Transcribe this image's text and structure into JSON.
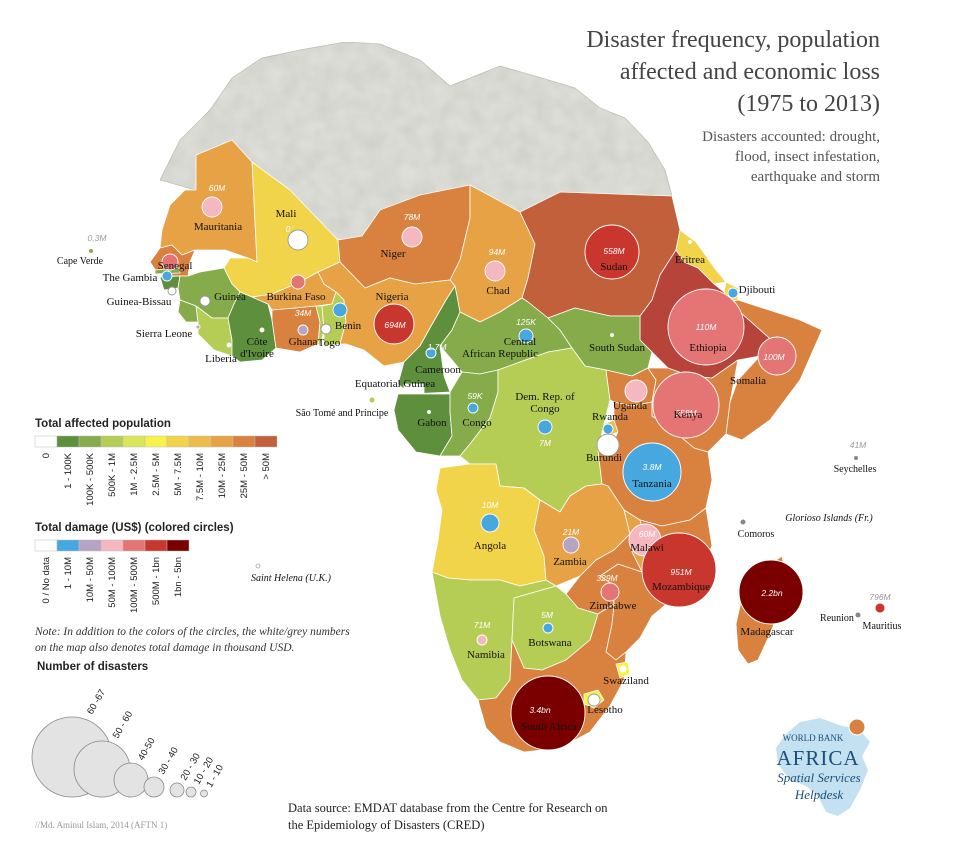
{
  "title_lines": [
    "Disaster frequency, population",
    "affected and economic loss",
    "(1975 to 2013)"
  ],
  "subtitle_lines": [
    "Disasters accounted: drought,",
    "flood, insect infestation,",
    "earthquake and storm"
  ],
  "legend_population": {
    "title": "Total affected population",
    "classes": [
      {
        "label": "0",
        "color": "#ffffff"
      },
      {
        "label": "1 - 100K",
        "color": "#5e8f3c"
      },
      {
        "label": "100K - 500K",
        "color": "#86ab4a"
      },
      {
        "label": "500K - 1M",
        "color": "#b6cd55"
      },
      {
        "label": "1M - 2.5M",
        "color": "#d9e659"
      },
      {
        "label": "2.5M - 5M",
        "color": "#f7f34a"
      },
      {
        "label": "5M - 7.5M",
        "color": "#f2d44a"
      },
      {
        "label": "7.5M - 10M",
        "color": "#ecbd4a"
      },
      {
        "label": "10M - 25M",
        "color": "#e6a245"
      },
      {
        "label": "25M - 50M",
        "color": "#d9823f"
      },
      {
        "label": "> 50M",
        "color": "#c2603b"
      }
    ]
  },
  "legend_damage": {
    "title": "Total damage (US$) (colored circles)",
    "classes": [
      {
        "label": "0 / No data",
        "color": "#ffffff"
      },
      {
        "label": "1 - 10M",
        "color": "#47a8df"
      },
      {
        "label": "10M - 50M",
        "color": "#b6a4c4"
      },
      {
        "label": "50M - 100M",
        "color": "#f5b8c1"
      },
      {
        "label": "100M - 500M",
        "color": "#e57474"
      },
      {
        "label": "500M - 1bn",
        "color": "#c8362e"
      },
      {
        "label": "1bn - 5bn",
        "color": "#7a0000"
      }
    ]
  },
  "note": "Note: In addition to the colors of the circles, the white/grey numbers on the map also denotes total damage in thousand USD.",
  "legend_disasters": {
    "title": "Number of disasters",
    "classes": [
      "60 -67",
      "50 - 60",
      "40-50",
      "30 - 40",
      "20 - 30",
      "10 - 20",
      "1 - 10"
    ]
  },
  "source_lines": [
    "Data source: EMDAT database from the Centre for Research on",
    "the Epidemiology of Disasters (CRED)"
  ],
  "credit": "//Md. Aminul Islam, 2014 (AFTN 1)",
  "logo": {
    "top": "WORLD BANK",
    "main": "AFRICA",
    "line1": "Spatial Services",
    "line2": "Helpdesk"
  },
  "countries": [
    {
      "name": "Mauritania",
      "fill": "#e6a245"
    },
    {
      "name": "Mali",
      "fill": "#f2d44a"
    },
    {
      "name": "Niger",
      "fill": "#d9823f"
    },
    {
      "name": "Chad",
      "fill": "#e6a245"
    },
    {
      "name": "Sudan",
      "fill": "#c2603b"
    },
    {
      "name": "Eritrea",
      "fill": "#f2d44a"
    },
    {
      "name": "Djibouti",
      "fill": "#f2d44a"
    },
    {
      "name": "Ethiopia",
      "fill": "#b6443a"
    },
    {
      "name": "Somalia",
      "fill": "#d9823f"
    },
    {
      "name": "Senegal",
      "fill": "#d9823f"
    },
    {
      "name": "The Gambia",
      "fill": "#86ab4a"
    },
    {
      "name": "Guinea-Bissau",
      "fill": "#5e8f3c"
    },
    {
      "name": "Guinea",
      "fill": "#86ab4a"
    },
    {
      "name": "Sierra Leone",
      "fill": "#86ab4a"
    },
    {
      "name": "Liberia",
      "fill": "#b6cd55"
    },
    {
      "name": "Côte d'Ivoire",
      "fill": "#5e8f3c"
    },
    {
      "name": "Burkina Faso",
      "fill": "#e6a245"
    },
    {
      "name": "Ghana",
      "fill": "#d9823f"
    },
    {
      "name": "Togo",
      "fill": "#b6cd55"
    },
    {
      "name": "Benin",
      "fill": "#b6cd55"
    },
    {
      "name": "Nigeria",
      "fill": "#e6a245"
    },
    {
      "name": "Cameroon",
      "fill": "#5e8f3c"
    },
    {
      "name": "Central African Republic",
      "fill": "#86ab4a"
    },
    {
      "name": "South Sudan",
      "fill": "#86ab4a"
    },
    {
      "name": "Equatorial Guinea",
      "fill": "#ffffff"
    },
    {
      "name": "Gabon",
      "fill": "#5e8f3c"
    },
    {
      "name": "Congo",
      "fill": "#86ab4a"
    },
    {
      "name": "Dem. Rep. of Congo",
      "fill": "#b6cd55"
    },
    {
      "name": "Uganda",
      "fill": "#d9823f"
    },
    {
      "name": "Kenya",
      "fill": "#d9823f"
    },
    {
      "name": "Rwanda",
      "fill": "#ecbd4a"
    },
    {
      "name": "Burundi",
      "fill": "#ecbd4a"
    },
    {
      "name": "Tanzania",
      "fill": "#d9823f"
    },
    {
      "name": "Angola",
      "fill": "#f2d44a"
    },
    {
      "name": "Zambia",
      "fill": "#e6a245"
    },
    {
      "name": "Malawi",
      "fill": "#e6a245"
    },
    {
      "name": "Mozambique",
      "fill": "#d9823f"
    },
    {
      "name": "Zimbabwe",
      "fill": "#d9823f"
    },
    {
      "name": "Namibia",
      "fill": "#b6cd55"
    },
    {
      "name": "Botswana",
      "fill": "#b6cd55"
    },
    {
      "name": "South Africa",
      "fill": "#d9823f"
    },
    {
      "name": "Lesotho",
      "fill": "#f7f34a"
    },
    {
      "name": "Swaziland",
      "fill": "#f7f34a"
    },
    {
      "name": "Madagascar",
      "fill": "#d9823f"
    }
  ],
  "map_labels": {
    "cape_verde": "Cape Verde",
    "sao_tome": "São Tomé and Príncipe",
    "saint_helena": "Saint Helena (U.K.)",
    "seychelles": "Seychelles",
    "glorioso": "Glorioso Islands (Fr.)",
    "comoros": "Comoros",
    "reunion": "Reunion",
    "mauritius": "Mauritius",
    "cote_line1": "Côte",
    "cote_line2": "d'Ivoire",
    "car_line1": "Central",
    "car_line2": "African Republic",
    "drc_line1": "Dem. Rep. of",
    "drc_line2": "Congo"
  },
  "damage_values": {
    "mauritania": "60M",
    "mali": "0",
    "niger": "78M",
    "chad": "94M",
    "sudan": "558M",
    "ethiopia": "110M",
    "somalia": "100M",
    "nigeria": "694M",
    "ghana": "34M",
    "car": "125K",
    "cameroon": "1.7M",
    "congo": "59K",
    "drc": "7M",
    "kenya": "258M",
    "tanzania": "3.8M",
    "angola": "10M",
    "zambia": "21M",
    "malawi": "60M",
    "mozambique": "951M",
    "zimbabwe": "329M",
    "namibia": "71M",
    "botswana": "5M",
    "south_africa": "3.4bn",
    "madagascar": "2.2bn",
    "cape_verde": "0.3M",
    "seychelles": "41M",
    "mauritius": "796M"
  }
}
